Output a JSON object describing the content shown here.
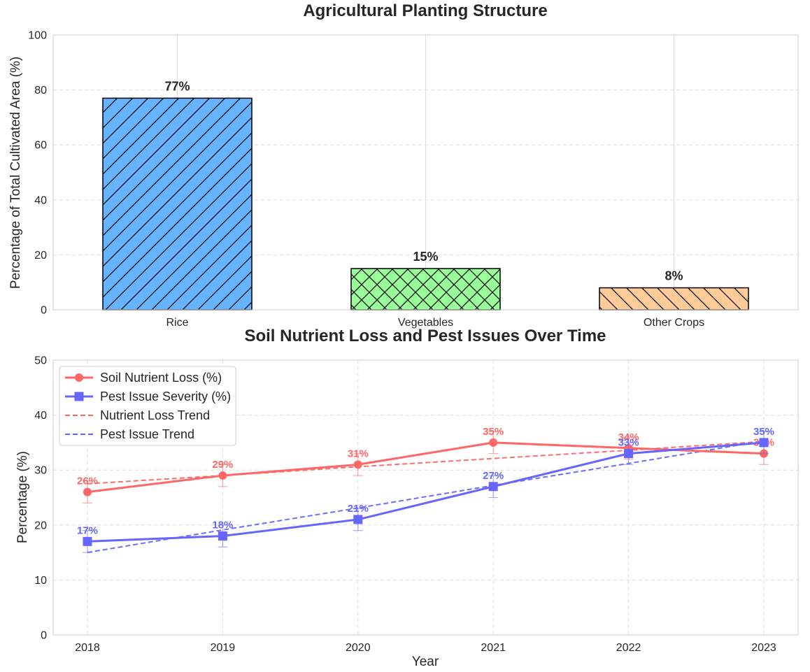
{
  "chart_data": [
    {
      "type": "bar",
      "title": "Agricultural Planting Structure",
      "xlabel": "",
      "ylabel": "Percentage of Total Cultivated Area (%)",
      "categories": [
        "Rice",
        "Vegetables",
        "Other Crops"
      ],
      "values": [
        77,
        15,
        8
      ],
      "value_labels": [
        "77%",
        "15%",
        "8%"
      ],
      "colors": [
        "#66b3ff",
        "#99ff99",
        "#ffcc99"
      ],
      "hatches": [
        "diagonal-up",
        "cross",
        "diagonal-down"
      ],
      "ylim": [
        0,
        100
      ],
      "yticks": [
        0,
        20,
        40,
        60,
        80,
        100
      ],
      "grid": true
    },
    {
      "type": "line",
      "title": "Soil Nutrient Loss and Pest Issues Over Time",
      "xlabel": "Year",
      "ylabel": "Percentage (%)",
      "x": [
        2018,
        2019,
        2020,
        2021,
        2022,
        2023
      ],
      "ylim": [
        0,
        50
      ],
      "yticks": [
        0,
        10,
        20,
        30,
        40,
        50
      ],
      "legend_position": "upper-left",
      "grid": true,
      "series": [
        {
          "name": "Soil Nutrient Loss (%)",
          "values": [
            26,
            29,
            31,
            35,
            34,
            33
          ],
          "errors": [
            2,
            2,
            2,
            2,
            2,
            2
          ],
          "labels": [
            "26%",
            "29%",
            "31%",
            "35%",
            "34%",
            "33%"
          ],
          "color": "#ff6666",
          "marker": "circle"
        },
        {
          "name": "Pest Issue Severity (%)",
          "values": [
            17,
            18,
            21,
            27,
            33,
            35
          ],
          "errors": [
            2,
            2,
            2,
            2,
            2,
            2
          ],
          "labels": [
            "17%",
            "18%",
            "21%",
            "27%",
            "33%",
            "35%"
          ],
          "color": "#6666ff",
          "marker": "square"
        }
      ],
      "trends": [
        {
          "name": "Nutrient Loss Trend",
          "values": [
            27.5,
            29.0,
            30.6,
            32.1,
            33.6,
            35.2
          ],
          "color": "#ff6666"
        },
        {
          "name": "Pest Issue Trend",
          "values": [
            15.0,
            19.1,
            23.1,
            27.2,
            31.2,
            35.3
          ],
          "color": "#6666ff"
        }
      ]
    }
  ]
}
